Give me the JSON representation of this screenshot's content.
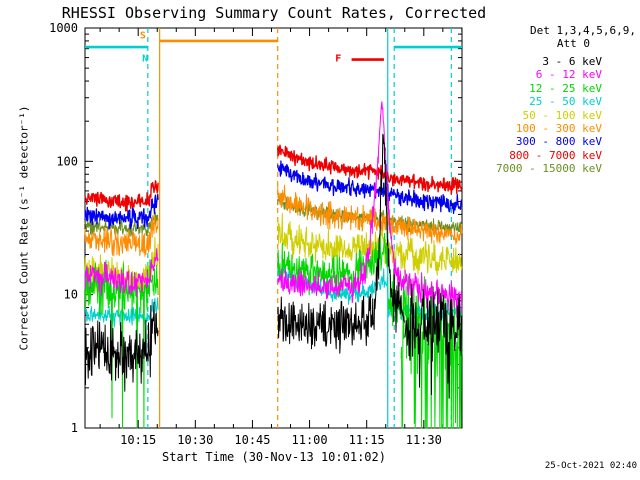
{
  "timestamp": "25-Oct-2021 02:40",
  "chart_data": {
    "type": "line",
    "title": "RHESSI Observing Summary Count Rates, Corrected",
    "xlabel": "Start Time (30-Nov-13 10:01:02)",
    "ylabel": "Corrected Count Rate (s⁻¹ detector⁻¹)",
    "yscale": "log",
    "ylim": [
      1,
      1000
    ],
    "x_range": [
      0,
      99
    ],
    "x_unit": "minutes after 10:01:02 on 30-Nov-13",
    "grid": false,
    "legend_position": "right",
    "legend_header": {
      "det": "Det 1,3,4,5,6,9,",
      "att": "Att 0"
    },
    "x_ticks": [
      {
        "t": 13.97,
        "label": "10:15"
      },
      {
        "t": 28.97,
        "label": "10:30"
      },
      {
        "t": 43.97,
        "label": "10:45"
      },
      {
        "t": 58.97,
        "label": "11:00"
      },
      {
        "t": 73.97,
        "label": "11:15"
      },
      {
        "t": 88.97,
        "label": "11:30"
      }
    ],
    "y_ticks": [
      {
        "v": 1,
        "label": "1"
      },
      {
        "v": 10,
        "label": "10"
      },
      {
        "v": 100,
        "label": "100"
      },
      {
        "v": 1000,
        "label": "1000"
      }
    ],
    "draw_order": [
      8,
      4,
      5,
      6,
      7,
      3,
      2,
      1,
      0
    ],
    "series": [
      {
        "label": "3 - 6 keV",
        "color": "#000000",
        "segments": [
          {
            "noise": 0.25,
            "spike_p": 0.04,
            "spike_f": 0.5,
            "points": [
              [
                0,
                4.2
              ],
              [
                4,
                3.8
              ],
              [
                8,
                3.5
              ],
              [
                12,
                3.6
              ],
              [
                15,
                3.8
              ],
              [
                16.5,
                4.0
              ],
              [
                17.5,
                5.5
              ],
              [
                19.3,
                5.5
              ]
            ]
          },
          {
            "noise": 0.2,
            "points": [
              [
                50.6,
                6.2
              ],
              [
                55,
                6.0
              ],
              [
                60,
                5.8
              ],
              [
                65,
                6.0
              ],
              [
                70,
                6.2
              ],
              [
                74,
                6.6
              ],
              [
                76,
                7.5
              ],
              [
                77.2,
                20
              ],
              [
                78.3,
                160
              ],
              [
                79.0,
                60
              ],
              [
                79.8,
                16
              ],
              [
                81,
                9
              ],
              [
                84,
                7.5
              ]
            ]
          },
          {
            "noise": 0.3,
            "spike_p": 0.05,
            "spike_f": 0.5,
            "points": [
              [
                84,
                6.5
              ],
              [
                90,
                6.0
              ],
              [
                96,
                5.8
              ],
              [
                99,
                5.5
              ]
            ]
          }
        ]
      },
      {
        "label": "6 - 12 keV",
        "color": "#FF00FF",
        "segments": [
          {
            "noise": 0.12,
            "points": [
              [
                0,
                14
              ],
              [
                5,
                13
              ],
              [
                10,
                12.5
              ],
              [
                15,
                12.5
              ],
              [
                17,
                13
              ],
              [
                17.6,
                17
              ],
              [
                19.3,
                17
              ]
            ]
          },
          {
            "noise": 0.12,
            "points": [
              [
                50.6,
                13
              ],
              [
                55,
                12
              ],
              [
                60,
                11.5
              ],
              [
                65,
                11.2
              ],
              [
                70,
                11.5
              ],
              [
                72,
                12.5
              ],
              [
                74,
                18
              ],
              [
                75.5,
                35
              ],
              [
                76.8,
                90
              ],
              [
                77.6,
                230
              ],
              [
                78.1,
                250
              ],
              [
                78.7,
                150
              ],
              [
                79.5,
                55
              ],
              [
                80.5,
                24
              ],
              [
                81.5,
                16
              ],
              [
                83,
                13
              ],
              [
                86,
                11.5
              ],
              [
                90,
                10.5
              ],
              [
                96,
                9.5
              ],
              [
                99,
                9.2
              ]
            ]
          }
        ]
      },
      {
        "label": "12 - 25 keV",
        "color": "#00D800",
        "segments": [
          {
            "noise": 0.2,
            "spike_p": 0.05,
            "spike_f": 0.1,
            "points": [
              [
                0,
                12
              ],
              [
                5,
                11
              ],
              [
                10,
                10.5
              ],
              [
                15,
                10.5
              ],
              [
                17,
                11
              ],
              [
                17.6,
                14
              ],
              [
                19.3,
                14
              ]
            ]
          },
          {
            "noise": 0.16,
            "points": [
              [
                50.6,
                17
              ],
              [
                55,
                15.5
              ],
              [
                60,
                14.5
              ],
              [
                65,
                14
              ],
              [
                70,
                14.5
              ],
              [
                74,
                16
              ],
              [
                77,
                20
              ],
              [
                78.4,
                22
              ],
              [
                79.4,
                18
              ]
            ]
          },
          {
            "noise": 0.22,
            "points": [
              [
                79.6,
                9
              ],
              [
                83,
                8.5
              ]
            ]
          },
          {
            "noise": 0.45,
            "spike_p": 0.22,
            "spike_f": 0.12,
            "points": [
              [
                83,
                6
              ],
              [
                90,
                5.5
              ],
              [
                96,
                5
              ],
              [
                99,
                4.8
              ]
            ]
          }
        ]
      },
      {
        "label": "25 - 50 keV",
        "color": "#00CFCF",
        "segments": [
          {
            "noise": 0.08,
            "points": [
              [
                0,
                7.0
              ],
              [
                10,
                6.8
              ],
              [
                17,
                6.8
              ],
              [
                17.6,
                8.5
              ],
              [
                19.3,
                8.5
              ]
            ]
          },
          {
            "noise": 0.08,
            "points": [
              [
                50.6,
                15
              ],
              [
                55,
                13
              ],
              [
                60,
                11.5
              ],
              [
                65,
                10.5
              ],
              [
                70,
                10
              ],
              [
                74,
                10.5
              ],
              [
                77,
                12
              ],
              [
                78.4,
                13
              ],
              [
                79.4,
                11
              ],
              [
                79.7,
                7.8
              ],
              [
                85,
                7.6
              ],
              [
                90,
                7.4
              ],
              [
                96,
                7.3
              ],
              [
                99,
                7.2
              ]
            ]
          }
        ]
      },
      {
        "label": "50 - 100 keV",
        "color": "#CFCF00",
        "segments": [
          {
            "noise": 0.15,
            "points": [
              [
                0,
                15
              ],
              [
                5,
                14
              ],
              [
                10,
                13.5
              ],
              [
                15,
                13.5
              ],
              [
                17,
                14
              ],
              [
                17.6,
                19
              ],
              [
                19.3,
                19
              ]
            ]
          },
          {
            "noise": 0.14,
            "points": [
              [
                50.6,
                30
              ],
              [
                55,
                26
              ],
              [
                60,
                24
              ],
              [
                65,
                22.5
              ],
              [
                70,
                22
              ],
              [
                74,
                22.5
              ],
              [
                78,
                24
              ],
              [
                79.4,
                23
              ],
              [
                79.7,
                21
              ],
              [
                85,
                19.5
              ],
              [
                90,
                18.5
              ],
              [
                96,
                18
              ],
              [
                99,
                17.5
              ]
            ]
          }
        ]
      },
      {
        "label": "100 - 300 keV",
        "color": "#FF8C00",
        "segments": [
          {
            "noise": 0.11,
            "points": [
              [
                0,
                27
              ],
              [
                5,
                25
              ],
              [
                10,
                24
              ],
              [
                15,
                24
              ],
              [
                17,
                25
              ],
              [
                17.6,
                34
              ],
              [
                19.3,
                34
              ]
            ]
          },
          {
            "noise": 0.1,
            "points": [
              [
                50.6,
                56
              ],
              [
                55,
                47
              ],
              [
                60,
                42
              ],
              [
                65,
                39
              ],
              [
                70,
                37
              ],
              [
                74,
                36.5
              ],
              [
                78,
                36
              ],
              [
                79.4,
                35.5
              ],
              [
                79.7,
                33
              ],
              [
                85,
                31
              ],
              [
                90,
                29.5
              ],
              [
                96,
                28.5
              ],
              [
                99,
                28
              ]
            ]
          }
        ]
      },
      {
        "label": "300 - 800 keV",
        "color": "#0000EE",
        "width": 1.3,
        "segments": [
          {
            "noise": 0.08,
            "points": [
              [
                0,
                40
              ],
              [
                5,
                38
              ],
              [
                10,
                37
              ],
              [
                15,
                37
              ],
              [
                17,
                38
              ],
              [
                17.6,
                50
              ],
              [
                19.3,
                50
              ]
            ]
          },
          {
            "noise": 0.07,
            "points": [
              [
                50.6,
                92
              ],
              [
                55,
                78
              ],
              [
                60,
                70
              ],
              [
                65,
                65
              ],
              [
                70,
                62
              ],
              [
                74,
                61
              ],
              [
                78,
                60
              ],
              [
                79.4,
                59
              ],
              [
                79.7,
                56
              ],
              [
                85,
                52
              ],
              [
                90,
                50
              ],
              [
                96,
                48
              ],
              [
                99,
                47
              ]
            ]
          }
        ]
      },
      {
        "label": "800 - 7000 keV",
        "color": "#EE0000",
        "width": 1.4,
        "segments": [
          {
            "noise": 0.07,
            "points": [
              [
                0,
                55
              ],
              [
                5,
                52
              ],
              [
                10,
                50
              ],
              [
                15,
                50
              ],
              [
                17,
                51
              ],
              [
                17.6,
                67
              ],
              [
                19.3,
                67
              ]
            ]
          },
          {
            "noise": 0.06,
            "points": [
              [
                50.6,
                125
              ],
              [
                55,
                106
              ],
              [
                60,
                96
              ],
              [
                65,
                90
              ],
              [
                70,
                86
              ],
              [
                74,
                84
              ],
              [
                78,
                83
              ],
              [
                79.4,
                82
              ],
              [
                79.7,
                76
              ],
              [
                85,
                71
              ],
              [
                90,
                68
              ],
              [
                96,
                66
              ],
              [
                99,
                65
              ]
            ]
          }
        ]
      },
      {
        "label": "7000 - 15000 keV",
        "color": "#6B8E23",
        "segments": [
          {
            "noise": 0.07,
            "points": [
              [
                0,
                33
              ],
              [
                10,
                32
              ],
              [
                17,
                32
              ],
              [
                17.6,
                38
              ],
              [
                19.3,
                38
              ]
            ]
          },
          {
            "noise": 0.06,
            "points": [
              [
                50.6,
                50
              ],
              [
                55,
                45
              ],
              [
                60,
                42
              ],
              [
                65,
                40
              ],
              [
                70,
                39
              ],
              [
                78,
                38
              ],
              [
                79.7,
                36
              ],
              [
                85,
                34
              ],
              [
                90,
                33
              ],
              [
                96,
                32
              ],
              [
                99,
                32
              ]
            ]
          }
        ]
      }
    ],
    "events": {
      "vlines": [
        {
          "t": 16.5,
          "color": "#00CFCF",
          "dashed": true,
          "meaning": "night"
        },
        {
          "t": 19.6,
          "color": "#FF8C00",
          "dashed": false,
          "meaning": "saa"
        },
        {
          "t": 50.6,
          "color": "#FF8C00",
          "dashed": true,
          "meaning": "saa"
        },
        {
          "t": 79.5,
          "color": "#00CFCF",
          "dashed": false,
          "meaning": "night"
        },
        {
          "t": 81.2,
          "color": "#00CFCF",
          "dashed": true,
          "meaning": "night"
        },
        {
          "t": 96.2,
          "color": "#00CFCF",
          "dashed": true,
          "meaning": "night"
        }
      ],
      "hbars": [
        {
          "t1": 0,
          "t2": 16.5,
          "value": 720,
          "color": "#00CFCF"
        },
        {
          "t1": 81.2,
          "t2": 99,
          "value": 720,
          "color": "#00CFCF"
        },
        {
          "t1": 19.6,
          "t2": 50.6,
          "value": 800,
          "color": "#FF8C00"
        },
        {
          "t1": 70,
          "t2": 78.5,
          "value": 580,
          "color": "#EE0000"
        }
      ],
      "flags": [
        {
          "t": 15.2,
          "value": 880,
          "text": "S",
          "color": "#FF8C00"
        },
        {
          "t": 15.8,
          "value": 590,
          "text": "N",
          "color": "#00CFCF"
        },
        {
          "t": 66.5,
          "value": 590,
          "text": "F",
          "color": "#EE0000"
        }
      ]
    }
  }
}
